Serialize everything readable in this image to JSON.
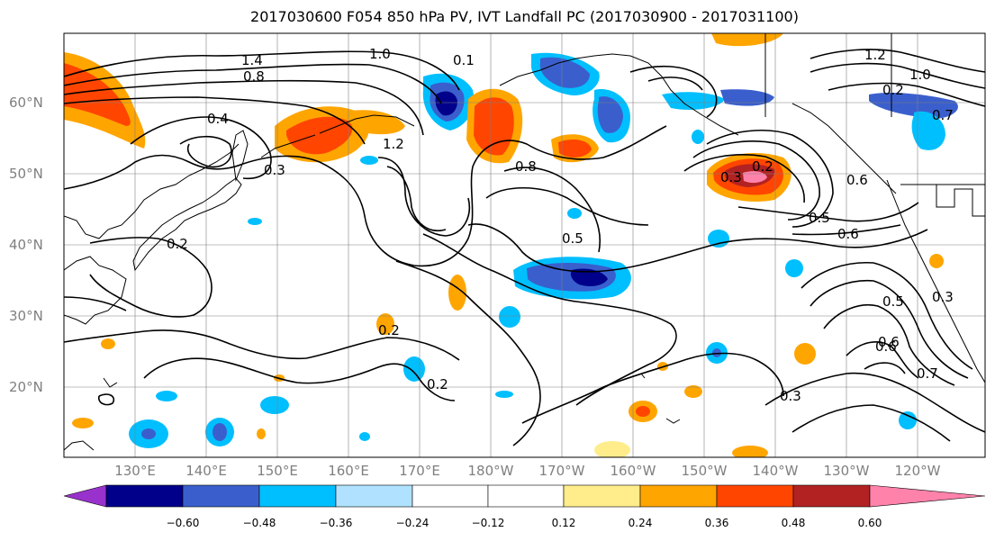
{
  "title": "2017030600 F054 850 hPa PV, IVT Landfall PC (2017030900 - 2017031100)",
  "lat_labels": [
    "60°N",
    "50°N",
    "40°N",
    "30°N",
    "20°N"
  ],
  "lon_labels": [
    "130°E",
    "140°E",
    "150°E",
    "160°E",
    "170°E",
    "180°W",
    "170°W",
    "160°W",
    "150°W",
    "140°W",
    "130°W",
    "120°W"
  ],
  "colorbar": {
    "colors": [
      "#9932cc",
      "#00008b",
      "#3a5fcd",
      "#00bfff",
      "#b0e2ff",
      "#ffffff",
      "#ffec8b",
      "#ffa500",
      "#ff4500",
      "#b22222",
      "#ff82ab"
    ],
    "tick_labels": [
      "−0.60",
      "−0.48",
      "−0.36",
      "−0.24",
      "−0.12",
      "0.12",
      "0.24",
      "0.36",
      "0.48",
      "0.60"
    ]
  },
  "contour_labels": [
    "1.4",
    "1.0",
    "0.8",
    "0.4",
    "0.3",
    "0.2",
    "0.5",
    "0.6",
    "0.7",
    "0.3",
    "0.2",
    "0.5",
    "0.8",
    "0.6",
    "1.2",
    "1.0",
    "0.2",
    "0.3",
    "0.6",
    "0.7",
    "0.5",
    "0.6",
    "0.3",
    "0.2",
    "0.2",
    "0.1",
    "1.2"
  ]
}
